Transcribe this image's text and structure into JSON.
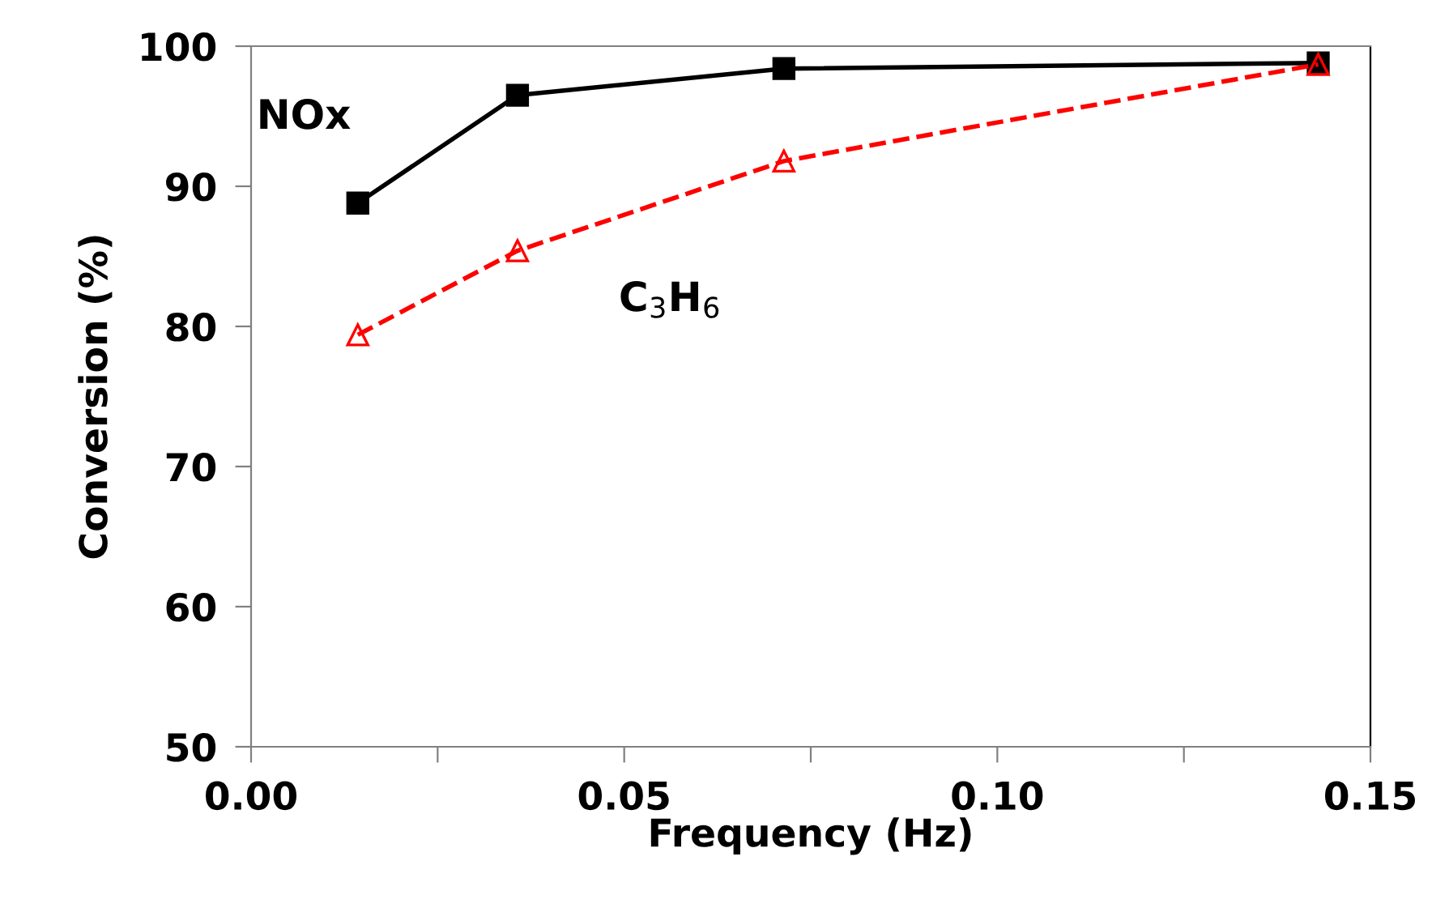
{
  "chart_data": {
    "type": "line",
    "xlabel": "Frequency (Hz)",
    "ylabel": "Conversion (%)",
    "xlim": [
      0,
      0.15
    ],
    "xticks": [
      "0.00",
      {
        "value": 0.025,
        "label": null
      },
      {
        "value": 0.05,
        "label": "0.05"
      },
      {
        "value": 0.075,
        "label": null
      },
      {
        "value": 0.1,
        "label": "0.10"
      },
      {
        "value": 0.125,
        "label": null
      },
      {
        "value": 0.15,
        "label": "0.15"
      }
    ],
    "ylim": [
      50,
      100
    ],
    "yticks": [
      50,
      60,
      70,
      80,
      90,
      100
    ],
    "grid": false,
    "legend": false,
    "x": [
      0.0143,
      0.0357,
      0.0714,
      0.143
    ],
    "series": [
      {
        "name": "NOx",
        "color": "#000000",
        "values": [
          88.8,
          96.5,
          98.4,
          98.8
        ],
        "marker": "square",
        "line_style": "solid"
      },
      {
        "name": "C$_{3}$H$_{6}$",
        "color": "#ff0000",
        "values": [
          79.4,
          85.4,
          91.8,
          98.7
        ],
        "marker": "triangle",
        "line_style": "dashed"
      }
    ]
  }
}
